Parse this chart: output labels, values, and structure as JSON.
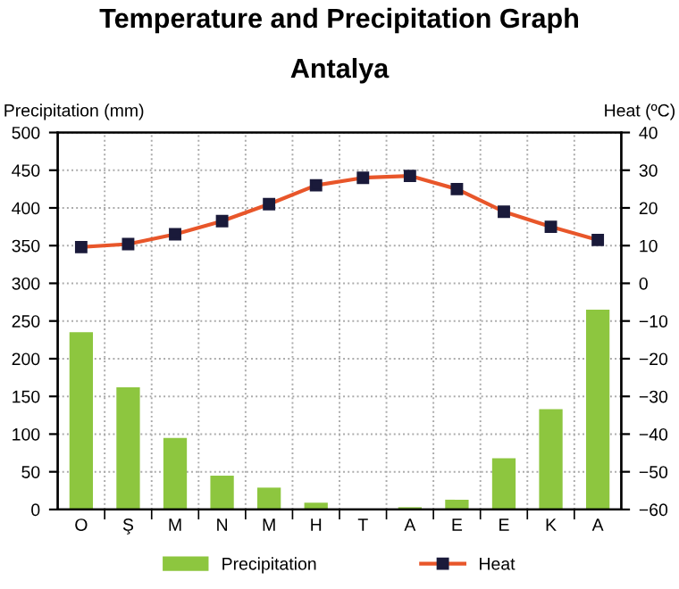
{
  "chart_data": {
    "type": "bar",
    "title": "Temperature and Precipitation Graph",
    "subtitle": "Antalya",
    "ylabel": "Precipitation (mm)",
    "y2label": "Heat (ºC)",
    "categories": [
      "O",
      "Ş",
      "M",
      "N",
      "M",
      "H",
      "T",
      "A",
      "E",
      "E",
      "K",
      "A"
    ],
    "series": [
      {
        "name": "Precipitation",
        "color": "#8dc63f",
        "values": [
          235,
          162,
          95,
          45,
          29,
          9,
          1,
          3,
          13,
          68,
          133,
          265
        ]
      },
      {
        "name": "Heat",
        "type": "line",
        "axis": "y2",
        "color": "#e8562a",
        "marker": "square",
        "values": [
          9.6,
          10.4,
          13,
          16.5,
          21,
          26,
          28,
          28.5,
          25,
          19,
          15,
          11.5
        ]
      }
    ],
    "ylim": [
      0,
      500
    ],
    "yticks": [
      0,
      50,
      100,
      150,
      200,
      250,
      300,
      350,
      400,
      450,
      500
    ],
    "y2lim": [
      -60,
      40
    ],
    "y2ticks": [
      -60,
      -50,
      -40,
      -30,
      -20,
      -10,
      0,
      10,
      20,
      30,
      40
    ],
    "grid": true,
    "legend": "bottom"
  }
}
